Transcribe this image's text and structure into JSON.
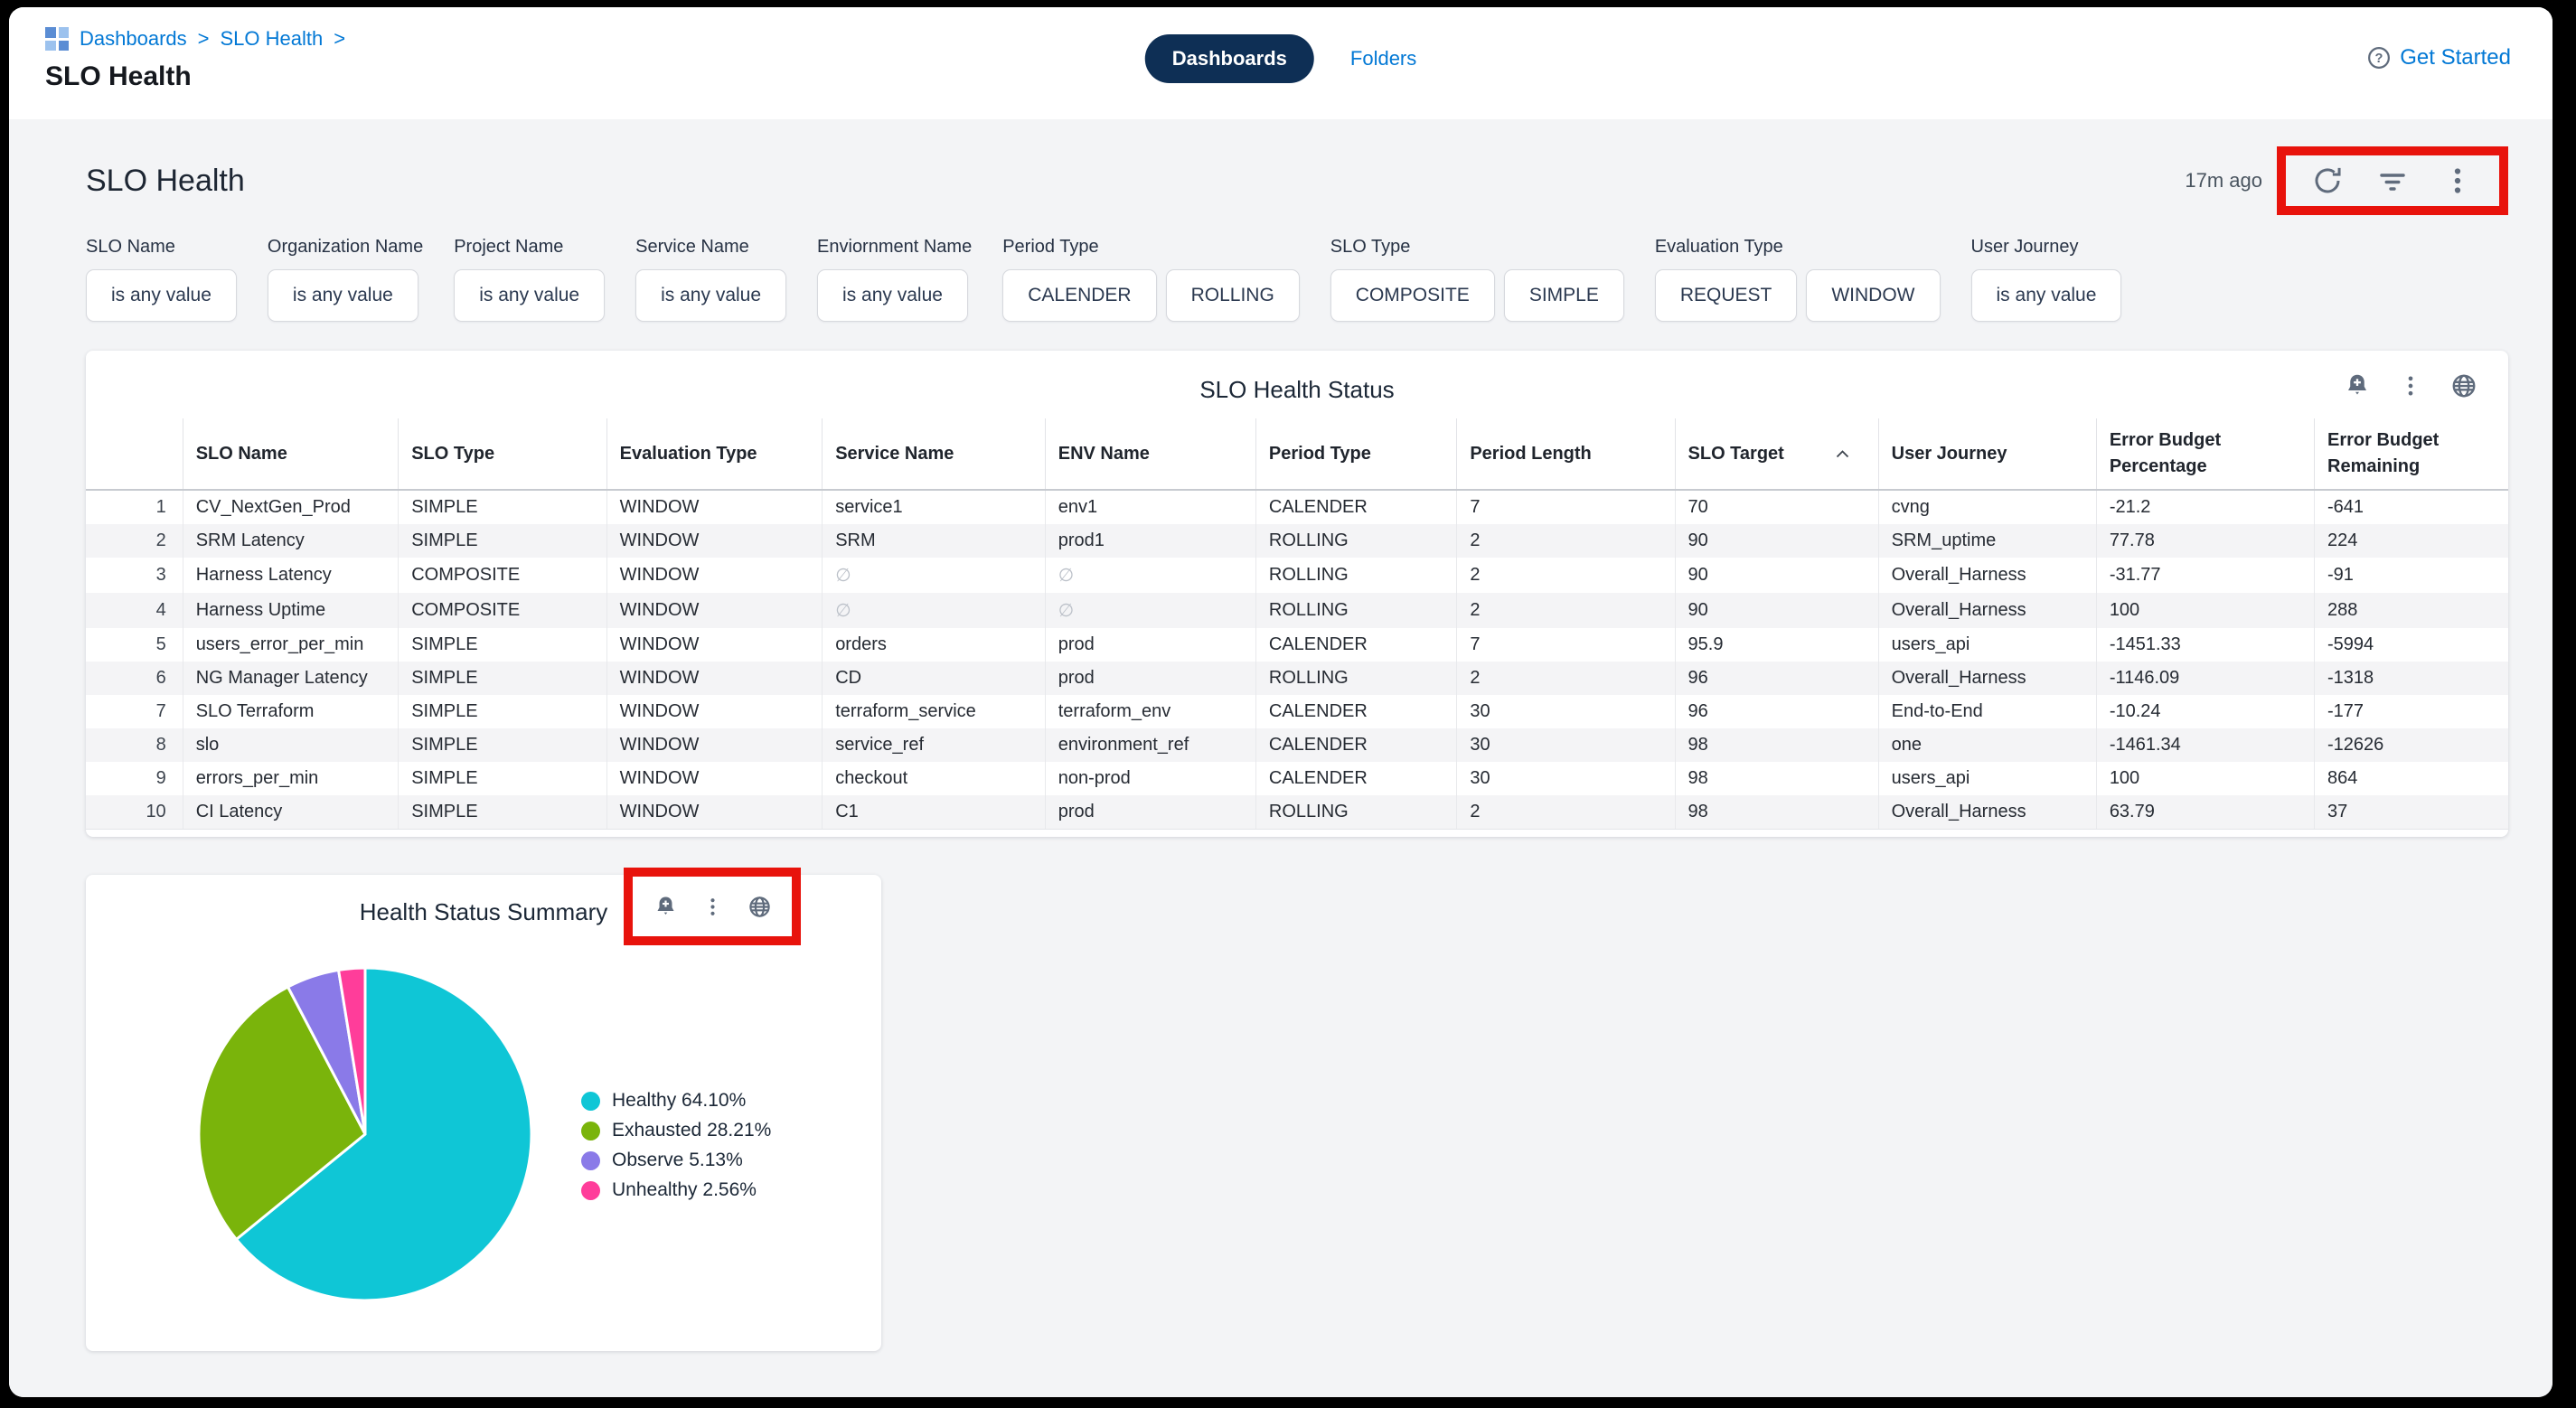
{
  "topbar": {
    "breadcrumb": {
      "items": [
        "Dashboards",
        "SLO Health"
      ],
      "separator": ">"
    },
    "page_title": "SLO Health",
    "tabs": [
      {
        "label": "Dashboards",
        "active": true
      },
      {
        "label": "Folders",
        "active": false
      }
    ],
    "get_started": "Get Started"
  },
  "dashboard": {
    "title": "SLO Health",
    "last_refreshed": "17m ago",
    "toolbar_icons": [
      "refresh-icon",
      "filter-icon",
      "kebab-menu-icon"
    ],
    "filters": [
      {
        "label": "SLO Name",
        "buttons": [
          "is any value"
        ]
      },
      {
        "label": "Organization Name",
        "buttons": [
          "is any value"
        ]
      },
      {
        "label": "Project Name",
        "buttons": [
          "is any value"
        ]
      },
      {
        "label": "Service Name",
        "buttons": [
          "is any value"
        ]
      },
      {
        "label": "Enviornment Name",
        "buttons": [
          "is any value"
        ]
      },
      {
        "label": "Period Type",
        "buttons": [
          "CALENDER",
          "ROLLING"
        ]
      },
      {
        "label": "SLO Type",
        "buttons": [
          "COMPOSITE",
          "SIMPLE"
        ]
      },
      {
        "label": "Evaluation Type",
        "buttons": [
          "REQUEST",
          "WINDOW"
        ]
      },
      {
        "label": "User Journey",
        "buttons": [
          "is any value"
        ]
      }
    ],
    "table": {
      "title": "SLO Health Status",
      "card_icons": [
        "bell-plus-icon",
        "kebab-menu-icon",
        "globe-icon"
      ],
      "columns": [
        "SLO Name",
        "SLO Type",
        "Evaluation Type",
        "Service Name",
        "ENV Name",
        "Period Type",
        "Period Length",
        "SLO Target",
        "User Journey",
        "Error Budget\nPercentage",
        "Error Budget\nRemaining"
      ],
      "sorted_column": "SLO Target",
      "sort_direction": "asc",
      "null_symbol": "∅",
      "rows": [
        [
          "CV_NextGen_Prod",
          "SIMPLE",
          "WINDOW",
          "service1",
          "env1",
          "CALENDER",
          "7",
          "70",
          "cvng",
          "-21.2",
          "-641"
        ],
        [
          "SRM Latency",
          "SIMPLE",
          "WINDOW",
          "SRM",
          "prod1",
          "ROLLING",
          "2",
          "90",
          "SRM_uptime",
          "77.78",
          "224"
        ],
        [
          "Harness Latency",
          "COMPOSITE",
          "WINDOW",
          "∅",
          "∅",
          "ROLLING",
          "2",
          "90",
          "Overall_Harness",
          "-31.77",
          "-91"
        ],
        [
          "Harness Uptime",
          "COMPOSITE",
          "WINDOW",
          "∅",
          "∅",
          "ROLLING",
          "2",
          "90",
          "Overall_Harness",
          "100",
          "288"
        ],
        [
          "users_error_per_min",
          "SIMPLE",
          "WINDOW",
          "orders",
          "prod",
          "CALENDER",
          "7",
          "95.9",
          "users_api",
          "-1451.33",
          "-5994"
        ],
        [
          "NG Manager Latency",
          "SIMPLE",
          "WINDOW",
          "CD",
          "prod",
          "ROLLING",
          "2",
          "96",
          "Overall_Harness",
          "-1146.09",
          "-1318"
        ],
        [
          "SLO Terraform",
          "SIMPLE",
          "WINDOW",
          "terraform_service",
          "terraform_env",
          "CALENDER",
          "30",
          "96",
          "End-to-End",
          "-10.24",
          "-177"
        ],
        [
          "slo",
          "SIMPLE",
          "WINDOW",
          "service_ref",
          "environment_ref",
          "CALENDER",
          "30",
          "98",
          "one",
          "-1461.34",
          "-12626"
        ],
        [
          "errors_per_min",
          "SIMPLE",
          "WINDOW",
          "checkout",
          "non-prod",
          "CALENDER",
          "30",
          "98",
          "users_api",
          "100",
          "864"
        ],
        [
          "CI Latency",
          "SIMPLE",
          "WINDOW",
          "C1",
          "prod",
          "ROLLING",
          "2",
          "98",
          "Overall_Harness",
          "63.79",
          "37"
        ]
      ]
    },
    "pie_card": {
      "title": "Health Status Summary",
      "card_icons": [
        "bell-plus-icon",
        "kebab-menu-icon",
        "globe-icon"
      ]
    }
  },
  "chart_data": {
    "type": "pie",
    "title": "Health Status Summary",
    "labels": [
      "Healthy",
      "Exhausted",
      "Observe",
      "Unhealthy"
    ],
    "values": [
      64.1,
      28.21,
      5.13,
      2.56
    ],
    "colors": [
      "#0fc6d6",
      "#7ab40b",
      "#8a7ae8",
      "#ff3d9a"
    ],
    "legend_labels": [
      "Healthy 64.10%",
      "Exhausted 28.21%",
      "Observe 5.13%",
      "Unhealthy 2.56%"
    ],
    "legend_position": "right",
    "start_angle_deg": 0,
    "direction": "clockwise"
  },
  "annotations": {
    "highlight_color": "#e8130c",
    "highlighted_regions": [
      "dashboard-toolbar-icons",
      "pie-card-toolbar-icons"
    ]
  }
}
